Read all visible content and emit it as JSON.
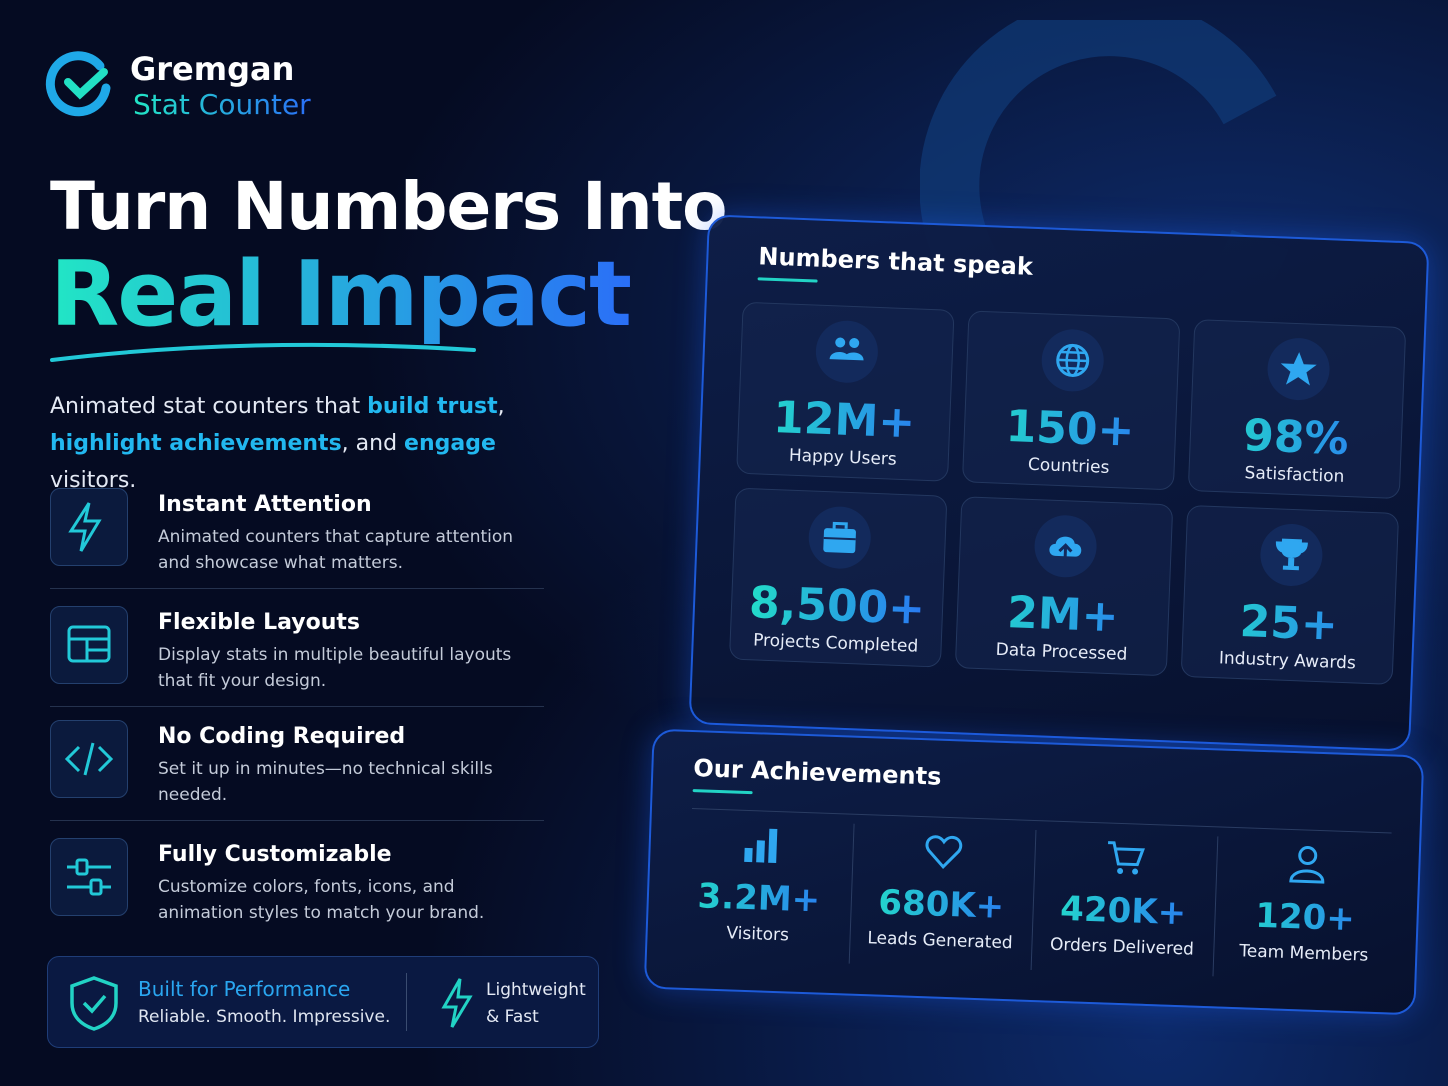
{
  "brand": {
    "name": "Gremgan",
    "product": "Stat Counter"
  },
  "hero": {
    "line1": "Turn Numbers Into",
    "line2": "Real Impact"
  },
  "intro": [
    {
      "text": "Animated stat counters that ",
      "accent": false
    },
    {
      "text": "build trust",
      "accent": true
    },
    {
      "text": ", ",
      "accent": false
    },
    {
      "text": "highlight achievements",
      "accent": true
    },
    {
      "text": ", and ",
      "accent": false
    },
    {
      "text": "engage",
      "accent": true
    },
    {
      "text": " visitors.",
      "accent": false
    }
  ],
  "features": [
    {
      "title": "Instant Attention",
      "description": "Animated counters that capture attention and showcase what matters."
    },
    {
      "title": "Flexible Layouts",
      "description": "Display stats in multiple beautiful layouts that fit your design."
    },
    {
      "title": "No Coding Required",
      "description": "Set it up in minutes—no technical skills needed."
    },
    {
      "title": "Fully Customizable",
      "description": "Customize colors, fonts, icons, and animation styles to match your brand."
    }
  ],
  "badge": {
    "title": "Built for Performance",
    "subtitle": "Reliable. Smooth. Impressive.",
    "tag": [
      "Lightweight",
      "& Fast"
    ]
  },
  "stats_panel": {
    "title": "Numbers that speak",
    "items": [
      {
        "value": "12M+",
        "label": "Happy Users"
      },
      {
        "value": "150+",
        "label": "Countries"
      },
      {
        "value": "98%",
        "label": "Satisfaction"
      },
      {
        "value": "8,500+",
        "label": "Projects Completed"
      },
      {
        "value": "2M+",
        "label": "Data Processed"
      },
      {
        "value": "25+",
        "label": "Industry Awards"
      }
    ]
  },
  "achievements": {
    "title": "Our Achievements",
    "items": [
      {
        "value": "3.2M+",
        "label": "Visitors"
      },
      {
        "value": "680K+",
        "label": "Leads Generated"
      },
      {
        "value": "420K+",
        "label": "Orders Delivered"
      },
      {
        "value": "120+",
        "label": "Team Members"
      }
    ]
  }
}
